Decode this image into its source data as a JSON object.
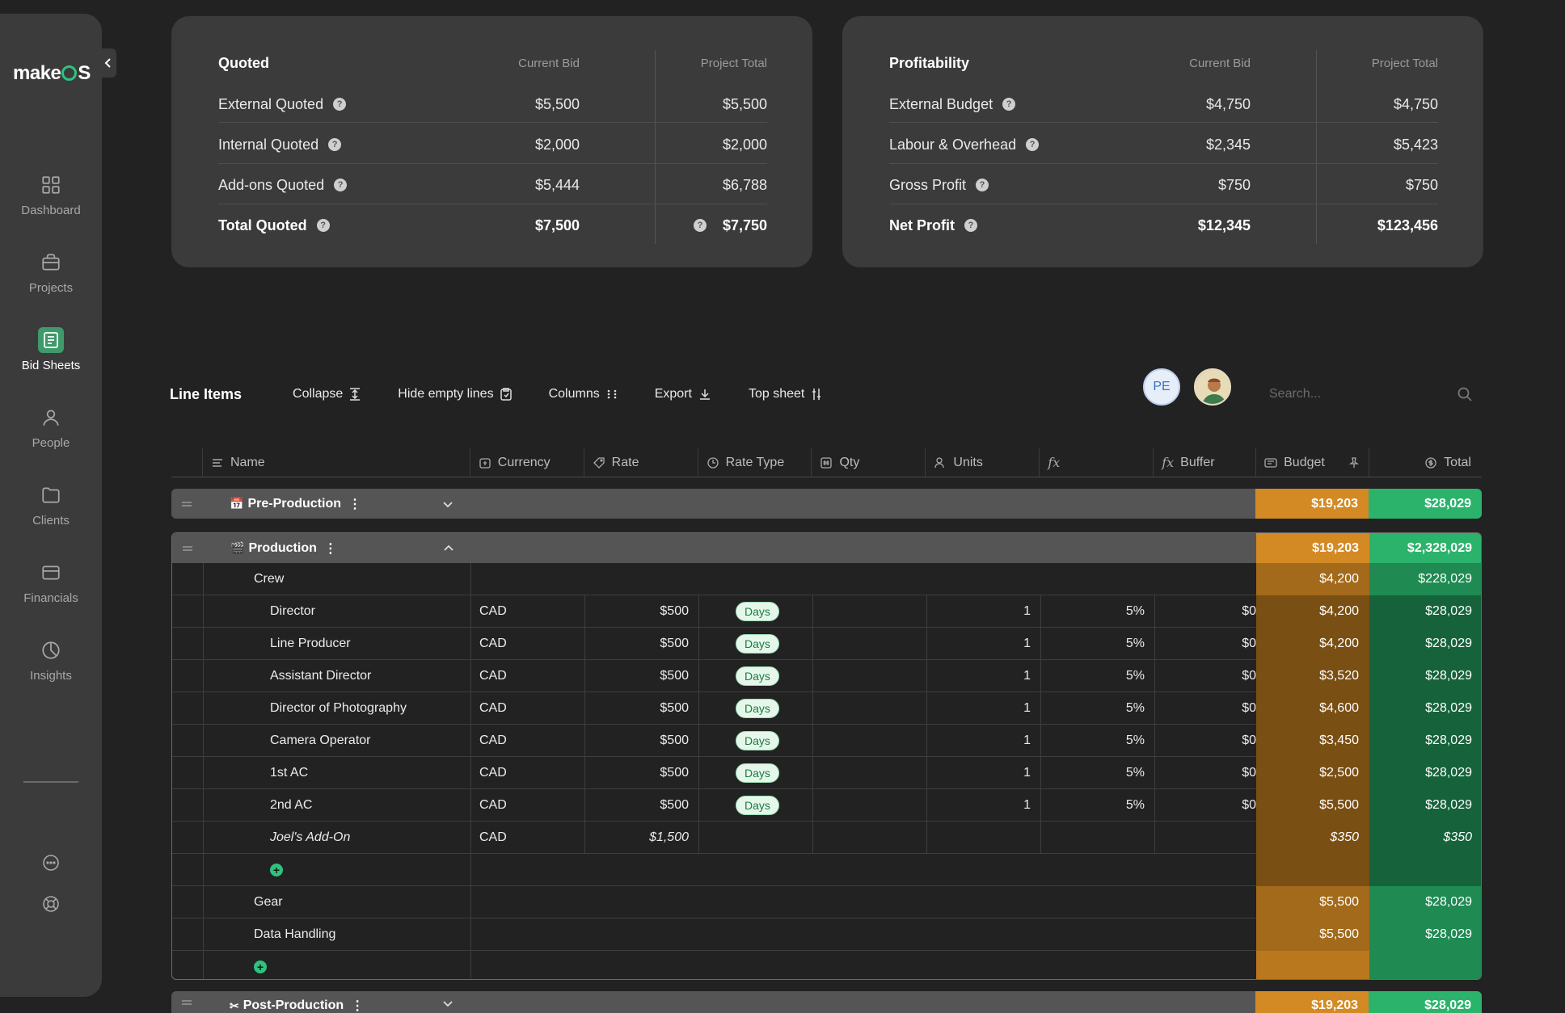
{
  "app": {
    "logo_text_1": "make",
    "logo_text_2": "S"
  },
  "sidebar": {
    "items": [
      {
        "label": "Dashboard",
        "icon": "dashboard-icon"
      },
      {
        "label": "Projects",
        "icon": "projects-icon"
      },
      {
        "label": "Bid Sheets",
        "icon": "bid-sheets-icon",
        "active": true
      },
      {
        "label": "People",
        "icon": "people-icon"
      },
      {
        "label": "Clients",
        "icon": "clients-icon"
      },
      {
        "label": "Financials",
        "icon": "financials-icon"
      },
      {
        "label": "Insights",
        "icon": "insights-icon"
      }
    ]
  },
  "quoted": {
    "title": "Quoted",
    "col1": "Current Bid",
    "col2": "Project Total",
    "rows": [
      {
        "label": "External Quoted",
        "bid": "$5,500",
        "total": "$5,500"
      },
      {
        "label": "Internal Quoted",
        "bid": "$2,000",
        "total": "$2,000"
      },
      {
        "label": "Add-ons Quoted",
        "bid": "$5,444",
        "total": "$6,788"
      },
      {
        "label": "Total Quoted",
        "bid": "$7,500",
        "total": "$7,750"
      }
    ]
  },
  "profitability": {
    "title": "Profitability",
    "col1": "Current Bid",
    "col2": "Project Total",
    "rows": [
      {
        "label": "External Budget",
        "bid": "$4,750",
        "total": "$4,750"
      },
      {
        "label": "Labour & Overhead",
        "bid": "$2,345",
        "total": "$5,423"
      },
      {
        "label": "Gross Profit",
        "bid": "$750",
        "total": "$750"
      },
      {
        "label": "Net Profit",
        "bid": "$12,345",
        "total": "$123,456"
      }
    ]
  },
  "toolbar": {
    "title": "Line Items",
    "collapse": "Collapse",
    "hide_empty": "Hide empty lines",
    "columns": "Columns",
    "export": "Export",
    "top_sheet": "Top sheet",
    "avatar_initials": "PE",
    "search_placeholder": "Search..."
  },
  "columns": {
    "name": "Name",
    "currency": "Currency",
    "rate": "Rate",
    "rate_type": "Rate Type",
    "qty": "Qty",
    "units": "Units",
    "fx": "fx",
    "buffer": "Buffer",
    "budget": "Budget",
    "total": "Total"
  },
  "groups": {
    "pre": {
      "name": "Pre-Production",
      "budget": "$19,203",
      "total": "$28,029"
    },
    "prod": {
      "name": "Production",
      "budget": "$19,203",
      "total": "$2,328,029"
    },
    "post": {
      "name": "Post-Production",
      "budget": "$19,203",
      "total": "$28,029"
    }
  },
  "subgroups": {
    "crew": {
      "name": "Crew",
      "budget": "$4,200",
      "total": "$228,029"
    },
    "gear": {
      "name": "Gear",
      "budget": "$5,500",
      "total": "$28,029"
    },
    "data": {
      "name": "Data Handling",
      "budget": "$5,500",
      "total": "$28,029"
    }
  },
  "crew_rows": [
    {
      "name": "Director",
      "currency": "CAD",
      "rate": "$500",
      "rate_type": "Days",
      "units": "1",
      "fx": "5%",
      "buffer": "$0",
      "budget": "$4,200",
      "total": "$28,029"
    },
    {
      "name": "Line Producer",
      "currency": "CAD",
      "rate": "$500",
      "rate_type": "Days",
      "units": "1",
      "fx": "5%",
      "buffer": "$0",
      "budget": "$4,200",
      "total": "$28,029"
    },
    {
      "name": "Assistant Director",
      "currency": "CAD",
      "rate": "$500",
      "rate_type": "Days",
      "units": "1",
      "fx": "5%",
      "buffer": "$0",
      "budget": "$3,520",
      "total": "$28,029"
    },
    {
      "name": "Director of Photography",
      "currency": "CAD",
      "rate": "$500",
      "rate_type": "Days",
      "units": "1",
      "fx": "5%",
      "buffer": "$0",
      "budget": "$4,600",
      "total": "$28,029"
    },
    {
      "name": "Camera Operator",
      "currency": "CAD",
      "rate": "$500",
      "rate_type": "Days",
      "units": "1",
      "fx": "5%",
      "buffer": "$0",
      "budget": "$3,450",
      "total": "$28,029"
    },
    {
      "name": "1st AC",
      "currency": "CAD",
      "rate": "$500",
      "rate_type": "Days",
      "units": "1",
      "fx": "5%",
      "buffer": "$0",
      "budget": "$2,500",
      "total": "$28,029"
    },
    {
      "name": "2nd AC",
      "currency": "CAD",
      "rate": "$500",
      "rate_type": "Days",
      "units": "1",
      "fx": "5%",
      "buffer": "$0",
      "budget": "$5,500",
      "total": "$28,029"
    }
  ],
  "addon_row": {
    "name": "Joel's Add-On",
    "currency": "CAD",
    "rate": "$1,500",
    "budget": "$350",
    "total": "$350"
  },
  "colors": {
    "accent_green": "#2bb36c",
    "budget_orange": "#d48a24",
    "bg": "#222222",
    "panel": "#3b3b3b"
  }
}
